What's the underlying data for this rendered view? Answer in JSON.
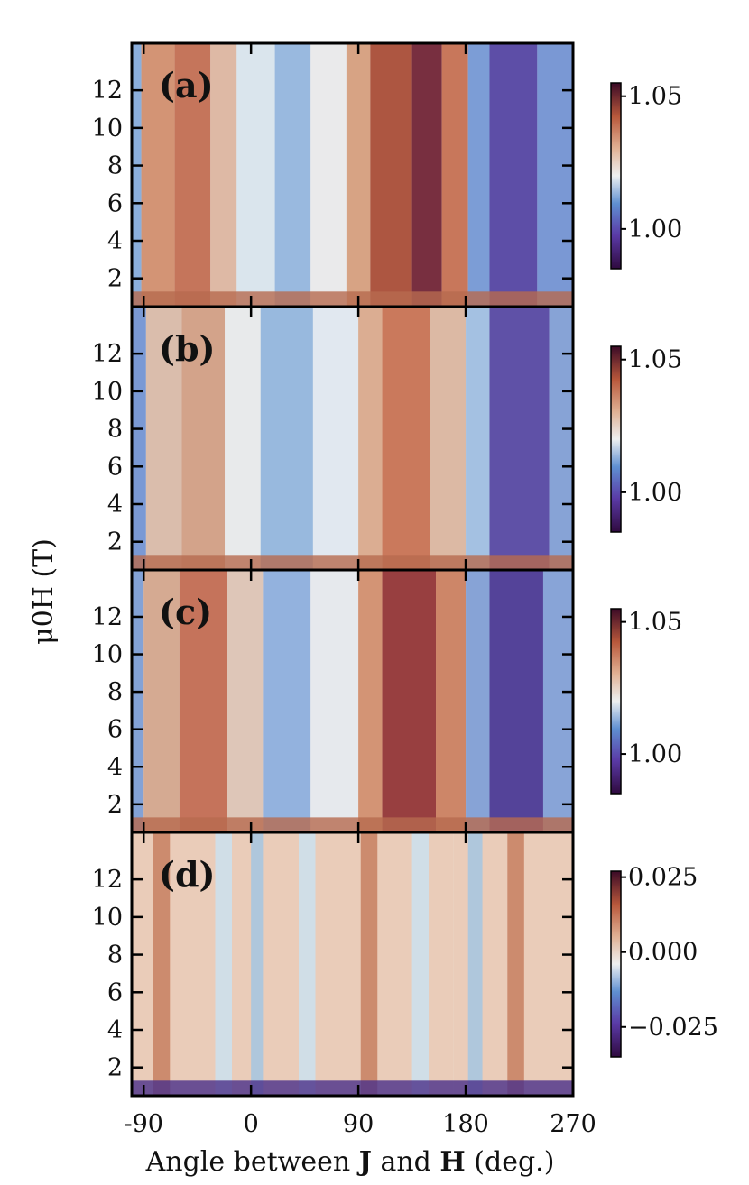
{
  "figure": {
    "ylabel": "μ0H (T)",
    "xlabel_parts": [
      "Angle between ",
      "J",
      " and ",
      "H",
      " (deg.)"
    ]
  },
  "chart_data": [
    {
      "type": "heatmap",
      "panel": "(a)",
      "x_range": [
        -100,
        270
      ],
      "y_range": [
        0.5,
        14.5
      ],
      "x_ticks": [
        "-90",
        "0",
        "90",
        "180",
        "270"
      ],
      "y_ticks": [
        "2",
        "4",
        "6",
        "8",
        "10",
        "12"
      ],
      "colorbar": {
        "ticks": [
          "1.00",
          "1.05"
        ],
        "range": [
          0.985,
          1.055
        ],
        "tick_values": [
          1.0,
          1.05
        ]
      }
    },
    {
      "type": "heatmap",
      "panel": "(b)",
      "x_range": [
        -100,
        270
      ],
      "y_range": [
        0.5,
        14.5
      ],
      "x_ticks": [
        "-90",
        "0",
        "90",
        "180",
        "270"
      ],
      "y_ticks": [
        "2",
        "4",
        "6",
        "8",
        "10",
        "12"
      ],
      "colorbar": {
        "ticks": [
          "1.00",
          "1.05"
        ],
        "range": [
          0.985,
          1.055
        ],
        "tick_values": [
          1.0,
          1.05
        ]
      }
    },
    {
      "type": "heatmap",
      "panel": "(c)",
      "x_range": [
        -100,
        270
      ],
      "y_range": [
        0.5,
        14.5
      ],
      "x_ticks": [
        "-90",
        "0",
        "90",
        "180",
        "270"
      ],
      "y_ticks": [
        "2",
        "4",
        "6",
        "8",
        "10",
        "12"
      ],
      "colorbar": {
        "ticks": [
          "1.00",
          "1.05"
        ],
        "range": [
          0.985,
          1.055
        ],
        "tick_values": [
          1.0,
          1.05
        ]
      }
    },
    {
      "type": "heatmap",
      "panel": "(d)",
      "x_range": [
        -100,
        270
      ],
      "y_range": [
        0.5,
        14.5
      ],
      "x_ticks": [
        "-90",
        "0",
        "90",
        "180",
        "270"
      ],
      "y_ticks": [
        "2",
        "4",
        "6",
        "8",
        "10",
        "12"
      ],
      "colorbar": {
        "ticks": [
          "−0.025",
          "0.000",
          "0.025"
        ],
        "range": [
          -0.035,
          0.027
        ],
        "tick_values": [
          -0.025,
          0.0,
          0.025
        ]
      }
    }
  ]
}
